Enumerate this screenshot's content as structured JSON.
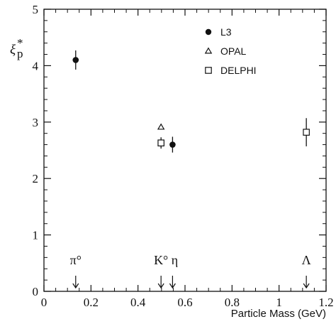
{
  "chart_data": {
    "type": "scatter",
    "title": "",
    "xlabel": "Particle Mass (GeV)",
    "ylabel": {
      "main": "ξ",
      "sup": "*",
      "sub": "p"
    },
    "xlim": [
      0,
      1.2
    ],
    "ylim": [
      0,
      5
    ],
    "xticks": [
      0,
      0.2,
      0.4,
      0.6,
      0.8,
      1,
      1.2
    ],
    "xtick_labels": [
      "0",
      "0.2",
      "0.4",
      "0.6",
      "0.8",
      "1",
      "1.2"
    ],
    "yticks": [
      0,
      1,
      2,
      3,
      4,
      5
    ],
    "ytick_labels": [
      "0",
      "1",
      "2",
      "3",
      "4",
      "5"
    ],
    "grid": false,
    "legend_position": "top-right",
    "series": [
      {
        "name": "L3",
        "marker": "filled-circle",
        "points": [
          {
            "x": 0.135,
            "y": 4.1,
            "err": 0.17
          },
          {
            "x": 0.547,
            "y": 2.6,
            "err": 0.14
          }
        ]
      },
      {
        "name": "OPAL",
        "marker": "open-triangle",
        "points": [
          {
            "x": 0.498,
            "y": 2.91,
            "err": 0.0
          }
        ]
      },
      {
        "name": "DELPHI",
        "marker": "open-square",
        "points": [
          {
            "x": 0.498,
            "y": 2.63,
            "err": 0.1
          },
          {
            "x": 1.116,
            "y": 2.82,
            "err": 0.25
          }
        ]
      }
    ],
    "annotations": [
      {
        "text": "π°",
        "x": 0.135
      },
      {
        "text": "K°",
        "x": 0.498
      },
      {
        "text": "η",
        "x": 0.547
      },
      {
        "text": "Λ",
        "x": 1.116
      }
    ]
  }
}
